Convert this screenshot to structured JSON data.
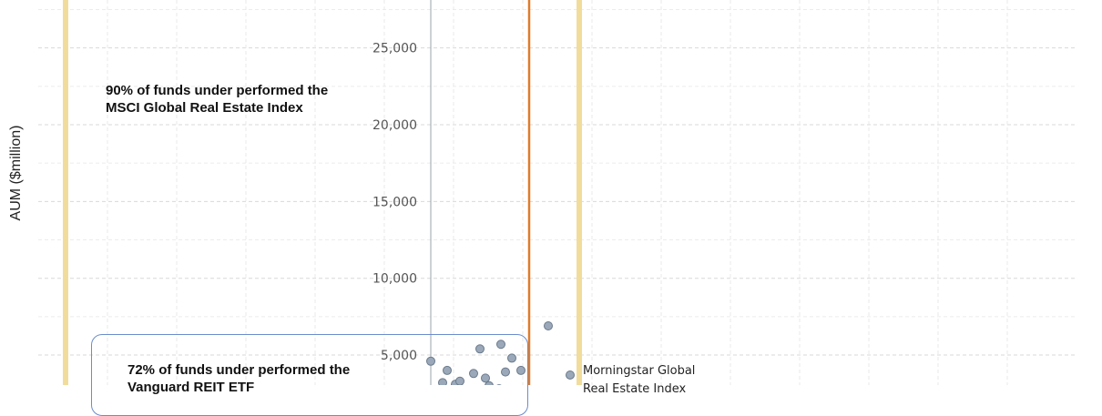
{
  "chart_data": {
    "type": "scatter",
    "title": "",
    "ylabel": "AUM  ($million)",
    "ylim": [
      0,
      28000
    ],
    "y_ticks": [
      5000,
      10000,
      15000,
      20000,
      25000
    ],
    "y_tick_labels": [
      "5,000",
      "10,000",
      "15,000",
      "20,000",
      "25,000"
    ],
    "grid": true,
    "points": [
      {
        "y": 4600
      },
      {
        "y": 4000
      },
      {
        "y": 3200
      },
      {
        "y": 3100
      },
      {
        "y": 3300
      },
      {
        "y": 3800
      },
      {
        "y": 5400
      },
      {
        "y": 3500
      },
      {
        "y": 3000
      },
      {
        "y": 2800
      },
      {
        "y": 5700
      },
      {
        "y": 4800
      },
      {
        "y": 3900
      },
      {
        "y": 4000
      },
      {
        "y": 6900
      },
      {
        "y": 3700
      }
    ],
    "annotations": {
      "note_msci": "90% of funds under performed the MSCI Global Real Estate Index",
      "note_vanguard": "72% of funds under performed the Vanguard REIT ETF",
      "benchmark_label": "Morningstar Global\nReal Estate Index"
    },
    "colors": {
      "marker_fill": "#9aa8b9",
      "marker_stroke": "#6b7a8c",
      "orange_line": "#e07b2c",
      "yellow_line": "#f2dc9b",
      "callout_border": "#6b8ccc",
      "grid": "#d9d9d9"
    }
  }
}
